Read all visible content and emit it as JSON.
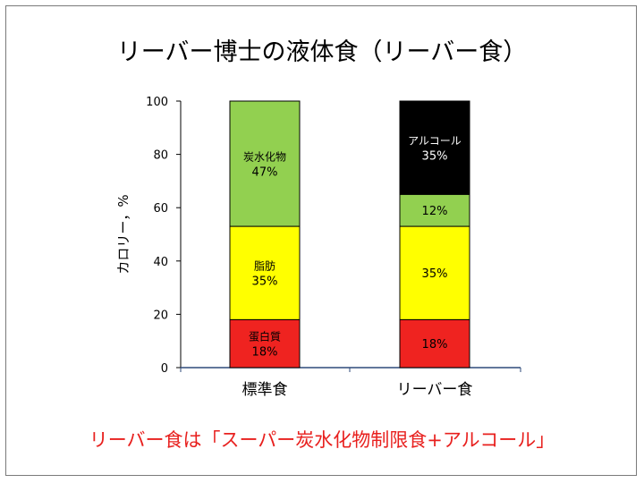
{
  "slide": {
    "title": "リーバー博士の液体食（リーバー食）",
    "footnote": "リーバー食は「スーパー炭水化物制限食+アルコール」"
  },
  "chart_data": {
    "type": "bar",
    "stacked": true,
    "title": "",
    "xlabel": "",
    "ylabel": "カロリー，%",
    "ylim": [
      0,
      100
    ],
    "yticks": [
      0,
      20,
      40,
      60,
      80,
      100
    ],
    "grid": false,
    "categories": [
      "標準食",
      "リーバー食"
    ],
    "series": [
      {
        "key": "protein",
        "color": "#ef2320",
        "values": [
          18,
          18
        ],
        "labels": [
          [
            "蛋白質",
            "18%"
          ],
          [
            "18%"
          ]
        ]
      },
      {
        "key": "fat",
        "color": "#ffff00",
        "values": [
          35,
          35
        ],
        "labels": [
          [
            "脂肪",
            "35%"
          ],
          [
            "35%"
          ]
        ]
      },
      {
        "key": "carbohydrate",
        "color": "#92d050",
        "values": [
          47,
          12
        ],
        "labels": [
          [
            "炭水化物",
            "47%"
          ],
          [
            "12%"
          ]
        ]
      },
      {
        "key": "alcohol",
        "color": "#000000",
        "values": [
          0,
          35
        ],
        "labels": [
          [],
          [
            "アルコール",
            "35%"
          ]
        ]
      }
    ]
  }
}
